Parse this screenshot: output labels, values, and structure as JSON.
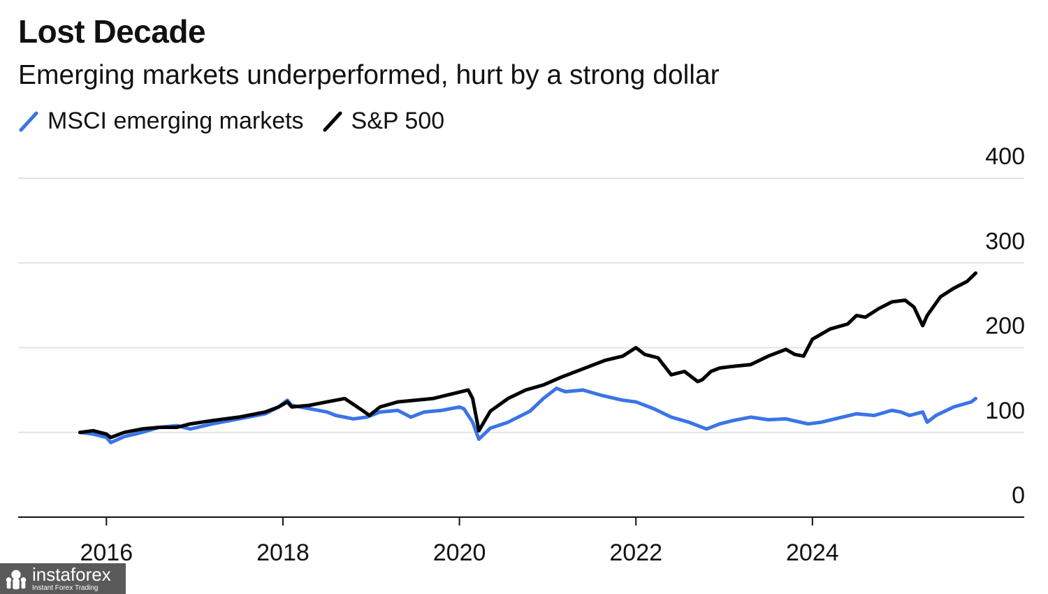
{
  "header": {
    "title": "Lost Decade",
    "subtitle": "Emerging markets underperformed, hurt by a strong dollar"
  },
  "legend": {
    "items": [
      {
        "label": "MSCI emerging markets",
        "color": "#3b74e6"
      },
      {
        "label": "S&P 500",
        "color": "#000000"
      }
    ]
  },
  "watermark": {
    "brand": "instaforex",
    "tagline": "Instant Forex Trading"
  },
  "chart_data": {
    "type": "line",
    "title": "Lost Decade",
    "subtitle": "Emerging markets underperformed, hurt by a strong dollar",
    "xlabel": "",
    "ylabel": "",
    "xlim": [
      2015.0,
      2026.4
    ],
    "ylim": [
      0,
      400
    ],
    "x_ticks": [
      2016,
      2018,
      2020,
      2022,
      2024
    ],
    "x_tick_labels": [
      "2016",
      "2018",
      "2020",
      "2022",
      "2024"
    ],
    "y_ticks": [
      0,
      100,
      200,
      300,
      400
    ],
    "y_tick_labels": [
      "0",
      "100",
      "200",
      "300",
      "400"
    ],
    "grid": true,
    "legend_position": "top-left",
    "series": [
      {
        "name": "MSCI emerging markets",
        "color": "#3b74e6",
        "points": [
          [
            2015.7,
            100
          ],
          [
            2015.85,
            98
          ],
          [
            2016.0,
            94
          ],
          [
            2016.05,
            88
          ],
          [
            2016.2,
            95
          ],
          [
            2016.4,
            100
          ],
          [
            2016.6,
            106
          ],
          [
            2016.8,
            108
          ],
          [
            2016.95,
            104
          ],
          [
            2017.2,
            110
          ],
          [
            2017.5,
            116
          ],
          [
            2017.8,
            122
          ],
          [
            2017.95,
            130
          ],
          [
            2018.05,
            138
          ],
          [
            2018.1,
            132
          ],
          [
            2018.3,
            128
          ],
          [
            2018.5,
            124
          ],
          [
            2018.6,
            120
          ],
          [
            2018.8,
            116
          ],
          [
            2018.95,
            118
          ],
          [
            2019.1,
            124
          ],
          [
            2019.3,
            126
          ],
          [
            2019.45,
            118
          ],
          [
            2019.6,
            124
          ],
          [
            2019.8,
            126
          ],
          [
            2020.0,
            130
          ],
          [
            2020.05,
            128
          ],
          [
            2020.15,
            112
          ],
          [
            2020.22,
            92
          ],
          [
            2020.35,
            105
          ],
          [
            2020.55,
            112
          ],
          [
            2020.8,
            125
          ],
          [
            2020.95,
            140
          ],
          [
            2021.1,
            152
          ],
          [
            2021.2,
            148
          ],
          [
            2021.4,
            150
          ],
          [
            2021.6,
            144
          ],
          [
            2021.85,
            138
          ],
          [
            2022.0,
            136
          ],
          [
            2022.2,
            128
          ],
          [
            2022.4,
            118
          ],
          [
            2022.6,
            112
          ],
          [
            2022.8,
            104
          ],
          [
            2022.95,
            110
          ],
          [
            2023.1,
            114
          ],
          [
            2023.3,
            118
          ],
          [
            2023.5,
            115
          ],
          [
            2023.7,
            116
          ],
          [
            2023.95,
            110
          ],
          [
            2024.1,
            112
          ],
          [
            2024.3,
            117
          ],
          [
            2024.5,
            122
          ],
          [
            2024.7,
            120
          ],
          [
            2024.9,
            126
          ],
          [
            2025.0,
            124
          ],
          [
            2025.1,
            120
          ],
          [
            2025.25,
            124
          ],
          [
            2025.3,
            112
          ],
          [
            2025.4,
            120
          ],
          [
            2025.6,
            130
          ],
          [
            2025.8,
            136
          ],
          [
            2025.85,
            140
          ]
        ]
      },
      {
        "name": "S&P 500",
        "color": "#000000",
        "points": [
          [
            2015.7,
            100
          ],
          [
            2015.85,
            102
          ],
          [
            2016.0,
            98
          ],
          [
            2016.05,
            94
          ],
          [
            2016.2,
            100
          ],
          [
            2016.4,
            104
          ],
          [
            2016.6,
            106
          ],
          [
            2016.8,
            106
          ],
          [
            2016.95,
            110
          ],
          [
            2017.2,
            114
          ],
          [
            2017.5,
            118
          ],
          [
            2017.8,
            124
          ],
          [
            2017.95,
            130
          ],
          [
            2018.05,
            136
          ],
          [
            2018.1,
            130
          ],
          [
            2018.3,
            132
          ],
          [
            2018.5,
            136
          ],
          [
            2018.7,
            140
          ],
          [
            2018.9,
            126
          ],
          [
            2018.98,
            120
          ],
          [
            2019.1,
            130
          ],
          [
            2019.3,
            136
          ],
          [
            2019.5,
            138
          ],
          [
            2019.7,
            140
          ],
          [
            2019.9,
            145
          ],
          [
            2020.1,
            150
          ],
          [
            2020.15,
            140
          ],
          [
            2020.22,
            102
          ],
          [
            2020.35,
            125
          ],
          [
            2020.55,
            140
          ],
          [
            2020.75,
            150
          ],
          [
            2020.95,
            156
          ],
          [
            2021.15,
            165
          ],
          [
            2021.4,
            175
          ],
          [
            2021.65,
            185
          ],
          [
            2021.85,
            190
          ],
          [
            2022.0,
            200
          ],
          [
            2022.1,
            192
          ],
          [
            2022.25,
            188
          ],
          [
            2022.4,
            168
          ],
          [
            2022.55,
            172
          ],
          [
            2022.7,
            160
          ],
          [
            2022.75,
            162
          ],
          [
            2022.85,
            172
          ],
          [
            2022.95,
            176
          ],
          [
            2023.1,
            178
          ],
          [
            2023.3,
            180
          ],
          [
            2023.5,
            190
          ],
          [
            2023.7,
            198
          ],
          [
            2023.8,
            192
          ],
          [
            2023.9,
            190
          ],
          [
            2024.0,
            210
          ],
          [
            2024.2,
            222
          ],
          [
            2024.4,
            228
          ],
          [
            2024.5,
            238
          ],
          [
            2024.6,
            236
          ],
          [
            2024.75,
            246
          ],
          [
            2024.9,
            254
          ],
          [
            2025.05,
            256
          ],
          [
            2025.15,
            248
          ],
          [
            2025.25,
            226
          ],
          [
            2025.3,
            238
          ],
          [
            2025.45,
            260
          ],
          [
            2025.6,
            270
          ],
          [
            2025.75,
            278
          ],
          [
            2025.85,
            288
          ]
        ]
      }
    ]
  }
}
